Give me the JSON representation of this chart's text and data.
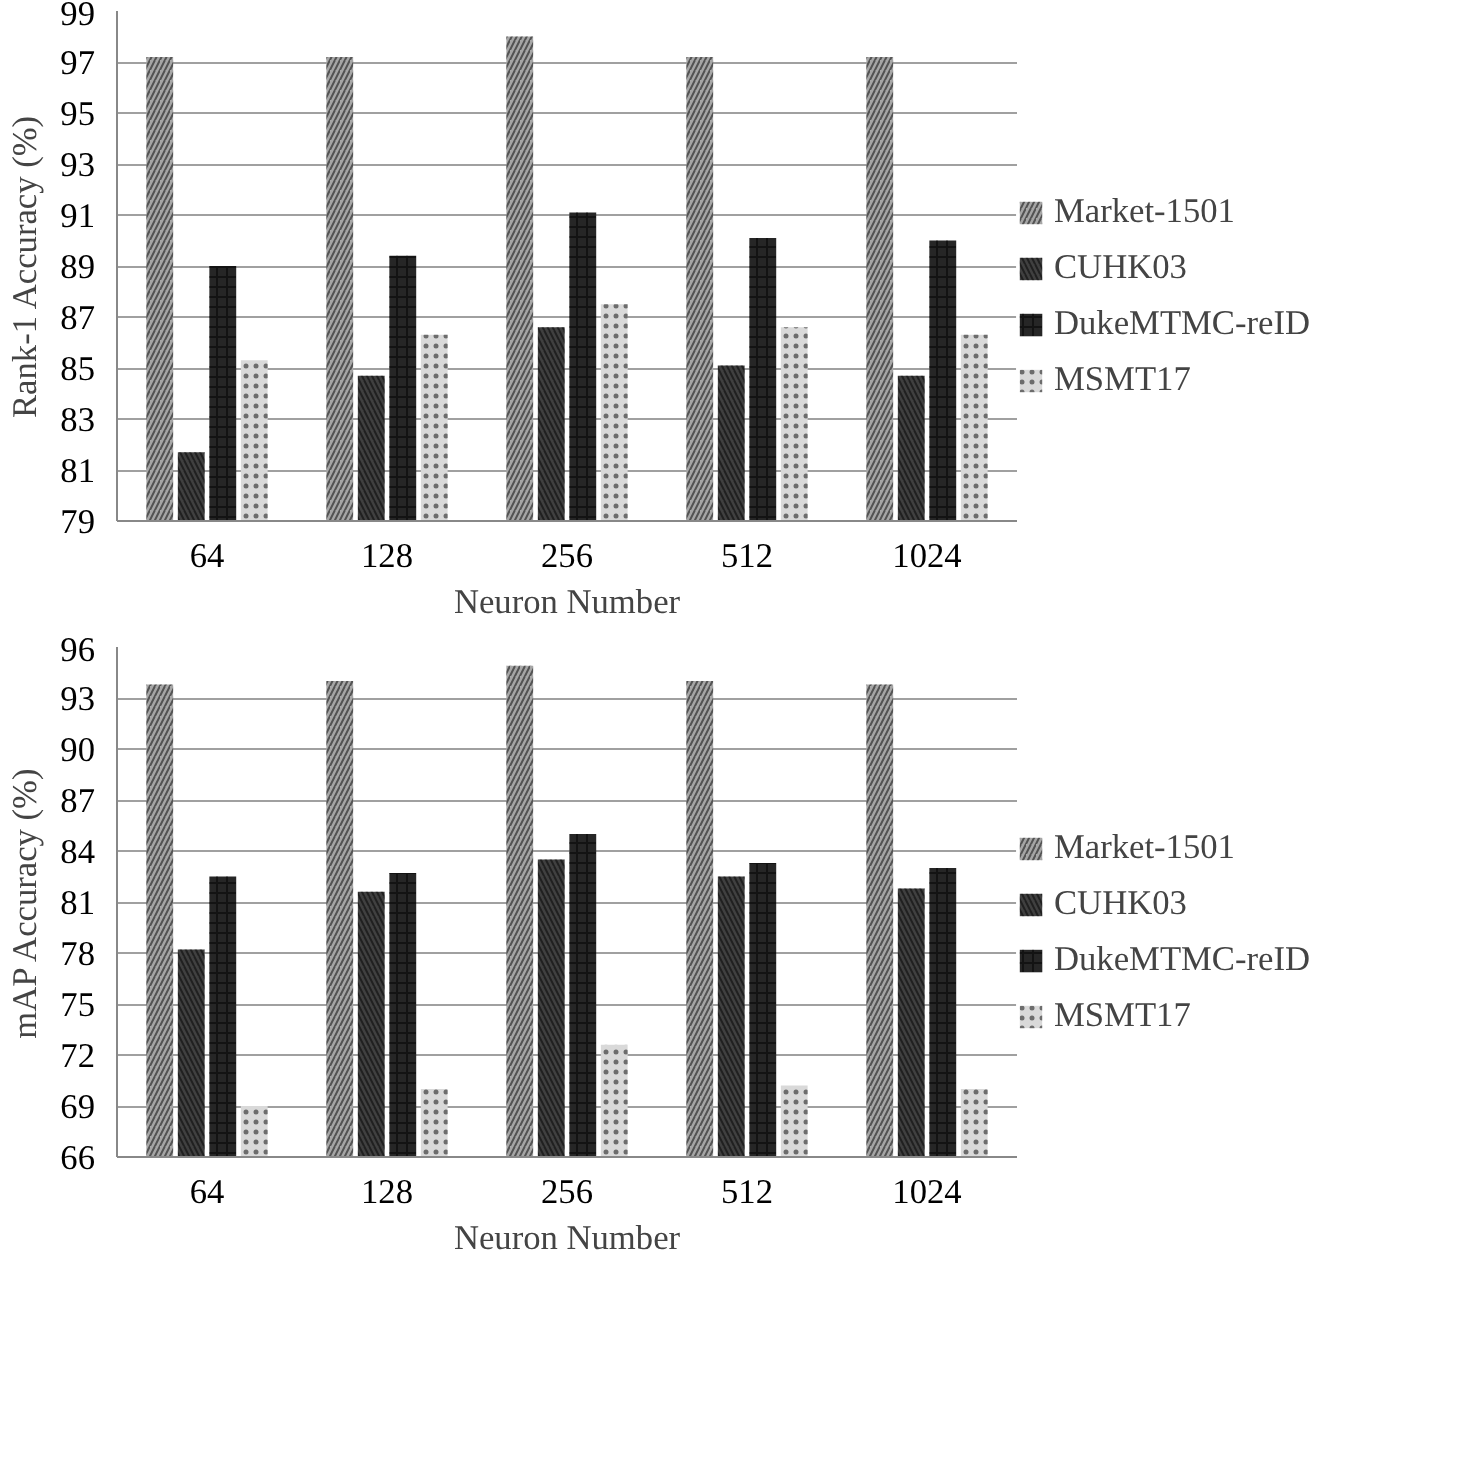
{
  "chart_data": [
    {
      "type": "bar",
      "categories": [
        "64",
        "128",
        "256",
        "512",
        "1024"
      ],
      "xlabel": "Neuron Number",
      "ylabel": "Rank-1 Accuracy (%)",
      "ylim": [
        79,
        99
      ],
      "yticks": [
        79,
        81,
        83,
        85,
        87,
        89,
        91,
        93,
        95,
        97,
        99
      ],
      "grid": "y",
      "legend": "right",
      "series": [
        {
          "name": "Market-1501",
          "color": "#a6a6a6",
          "values": [
            97.2,
            97.2,
            98.0,
            97.2,
            97.2
          ]
        },
        {
          "name": "CUHK03",
          "color": "#404040",
          "values": [
            81.7,
            84.7,
            86.6,
            85.1,
            84.7
          ]
        },
        {
          "name": "DukeMTMC-reID",
          "color": "#262626",
          "values": [
            89.0,
            89.4,
            91.1,
            90.1,
            90.0
          ]
        },
        {
          "name": "MSMT17",
          "color": "#d9d9d9",
          "values": [
            85.3,
            86.3,
            87.5,
            86.6,
            86.3
          ]
        }
      ]
    },
    {
      "type": "bar",
      "categories": [
        "64",
        "128",
        "256",
        "512",
        "1024"
      ],
      "xlabel": "Neuron Number",
      "ylabel": "mAP Accuracy (%)",
      "ylim": [
        66,
        96
      ],
      "yticks": [
        66,
        69,
        72,
        75,
        78,
        81,
        84,
        87,
        90,
        93,
        96
      ],
      "grid": "y",
      "legend": "right",
      "series": [
        {
          "name": "Market-1501",
          "color": "#a6a6a6",
          "values": [
            93.8,
            94.0,
            94.9,
            94.0,
            93.8
          ]
        },
        {
          "name": "CUHK03",
          "color": "#404040",
          "values": [
            78.2,
            81.6,
            83.5,
            82.5,
            81.8
          ]
        },
        {
          "name": "DukeMTMC-reID",
          "color": "#262626",
          "values": [
            82.5,
            82.7,
            85.0,
            83.3,
            83.0
          ]
        },
        {
          "name": "MSMT17",
          "color": "#d9d9d9",
          "values": [
            69.0,
            70.0,
            72.6,
            70.2,
            70.0
          ]
        }
      ]
    }
  ]
}
